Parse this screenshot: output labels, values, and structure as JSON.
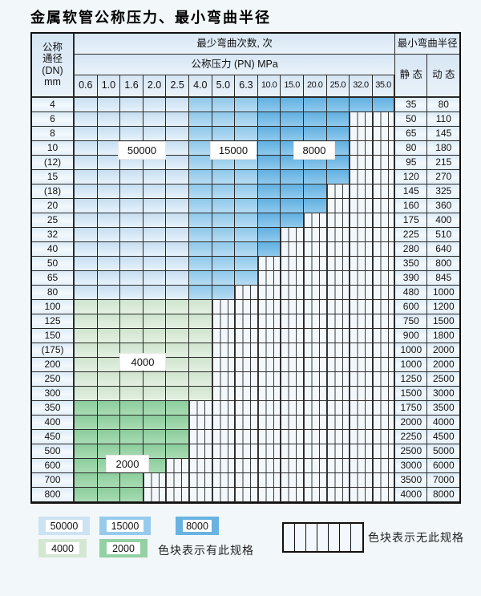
{
  "title": "金属软管公称压力、最小弯曲半径",
  "table": {
    "header": {
      "dn_lines": [
        "公称",
        "通径",
        "(DN)",
        "mm"
      ],
      "bend_cycles_label": "最少弯曲次数, 次",
      "pressure_label": "公称压力 (PN) MPa",
      "radius_label": "最小弯曲半径",
      "static_label": "静 态",
      "dynamic_label": "动 态",
      "pressure_columns": [
        "0.6",
        "1.0",
        "1.6",
        "2.0",
        "2.5",
        "4.0",
        "5.0",
        "6.3",
        "10.0",
        "15.0",
        "20.0",
        "25.0",
        "32.0",
        "35.0"
      ]
    },
    "zone_values": {
      "blue_light": "50000",
      "blue_medium": "15000",
      "blue_dark": "8000",
      "green_light": "4000",
      "green_dark": "2000"
    },
    "blue_zone_columns": {
      "blue_light": [
        "0.6",
        "1.0",
        "1.6",
        "2.0",
        "2.5"
      ],
      "blue_medium": [
        "4.0",
        "5.0",
        "6.3"
      ],
      "blue_dark": [
        "10.0",
        "15.0",
        "20.0",
        "25.0",
        "32.0",
        "35.0"
      ]
    },
    "rows": [
      {
        "dn": "4",
        "max_pn": "35.0",
        "palette": "blue",
        "static": "35",
        "dynamic": "80"
      },
      {
        "dn": "6",
        "max_pn": "25.0",
        "palette": "blue",
        "static": "50",
        "dynamic": "110"
      },
      {
        "dn": "8",
        "max_pn": "25.0",
        "palette": "blue",
        "static": "65",
        "dynamic": "145"
      },
      {
        "dn": "10",
        "max_pn": "25.0",
        "palette": "blue",
        "static": "80",
        "dynamic": "180"
      },
      {
        "dn": "(12)",
        "max_pn": "25.0",
        "palette": "blue",
        "static": "95",
        "dynamic": "215"
      },
      {
        "dn": "15",
        "max_pn": "25.0",
        "palette": "blue",
        "static": "120",
        "dynamic": "270"
      },
      {
        "dn": "(18)",
        "max_pn": "20.0",
        "palette": "blue",
        "static": "145",
        "dynamic": "325"
      },
      {
        "dn": "20",
        "max_pn": "20.0",
        "palette": "blue",
        "static": "160",
        "dynamic": "360"
      },
      {
        "dn": "25",
        "max_pn": "15.0",
        "palette": "blue",
        "static": "175",
        "dynamic": "400"
      },
      {
        "dn": "32",
        "max_pn": "10.0",
        "palette": "blue",
        "static": "225",
        "dynamic": "510"
      },
      {
        "dn": "40",
        "max_pn": "10.0",
        "palette": "blue",
        "static": "280",
        "dynamic": "640"
      },
      {
        "dn": "50",
        "max_pn": "6.3",
        "palette": "blue",
        "static": "350",
        "dynamic": "800"
      },
      {
        "dn": "65",
        "max_pn": "6.3",
        "palette": "blue",
        "static": "390",
        "dynamic": "845"
      },
      {
        "dn": "80",
        "max_pn": "5.0",
        "palette": "blue",
        "static": "480",
        "dynamic": "1000"
      },
      {
        "dn": "100",
        "max_pn": "4.0",
        "palette": "green-light",
        "static": "600",
        "dynamic": "1200"
      },
      {
        "dn": "125",
        "max_pn": "4.0",
        "palette": "green-light",
        "static": "750",
        "dynamic": "1500"
      },
      {
        "dn": "150",
        "max_pn": "4.0",
        "palette": "green-light",
        "static": "900",
        "dynamic": "1800"
      },
      {
        "dn": "(175)",
        "max_pn": "4.0",
        "palette": "green-light",
        "static": "1000",
        "dynamic": "2000"
      },
      {
        "dn": "200",
        "max_pn": "4.0",
        "palette": "green-light",
        "static": "1000",
        "dynamic": "2000"
      },
      {
        "dn": "250",
        "max_pn": "4.0",
        "palette": "green-light",
        "static": "1250",
        "dynamic": "2500"
      },
      {
        "dn": "300",
        "max_pn": "4.0",
        "palette": "green-light",
        "static": "1500",
        "dynamic": "3000"
      },
      {
        "dn": "350",
        "max_pn": "2.5",
        "palette": "green-dark",
        "static": "1750",
        "dynamic": "3500"
      },
      {
        "dn": "400",
        "max_pn": "2.5",
        "palette": "green-dark",
        "static": "2000",
        "dynamic": "4000"
      },
      {
        "dn": "450",
        "max_pn": "2.5",
        "palette": "green-dark",
        "static": "2250",
        "dynamic": "4500"
      },
      {
        "dn": "500",
        "max_pn": "2.5",
        "palette": "green-dark",
        "static": "2500",
        "dynamic": "5000"
      },
      {
        "dn": "600",
        "max_pn": "2.0",
        "palette": "green-dark",
        "static": "3000",
        "dynamic": "6000"
      },
      {
        "dn": "700",
        "max_pn": "1.6",
        "palette": "green-dark",
        "static": "3500",
        "dynamic": "7000"
      },
      {
        "dn": "800",
        "max_pn": "1.6",
        "palette": "green-dark",
        "static": "4000",
        "dynamic": "8000"
      }
    ],
    "zone_labels": [
      "50000",
      "15000",
      "8000",
      "4000",
      "2000"
    ]
  },
  "legend": {
    "items": [
      {
        "label": "50000",
        "color_key": "blue_light"
      },
      {
        "label": "15000",
        "color_key": "blue_medium"
      },
      {
        "label": "8000",
        "color_key": "blue_dark"
      },
      {
        "label": "4000",
        "color_key": "green_light"
      },
      {
        "label": "2000",
        "color_key": "green_dark"
      }
    ],
    "has_spec_text": "色块表示有此规格",
    "no_spec_text": "色块表示无此规格",
    "stripe_cell_count": 7
  },
  "colors": {
    "blue_light": "#cde2f3",
    "blue_medium": "#97cbec",
    "blue_dark": "#68b3e2",
    "green_light": "#d3e7d2",
    "green_dark": "#93d1a3",
    "stripe_bg": "#f3f8fd",
    "header_bg": "#dfecf8",
    "grid_line": "#2a2a2a"
  }
}
